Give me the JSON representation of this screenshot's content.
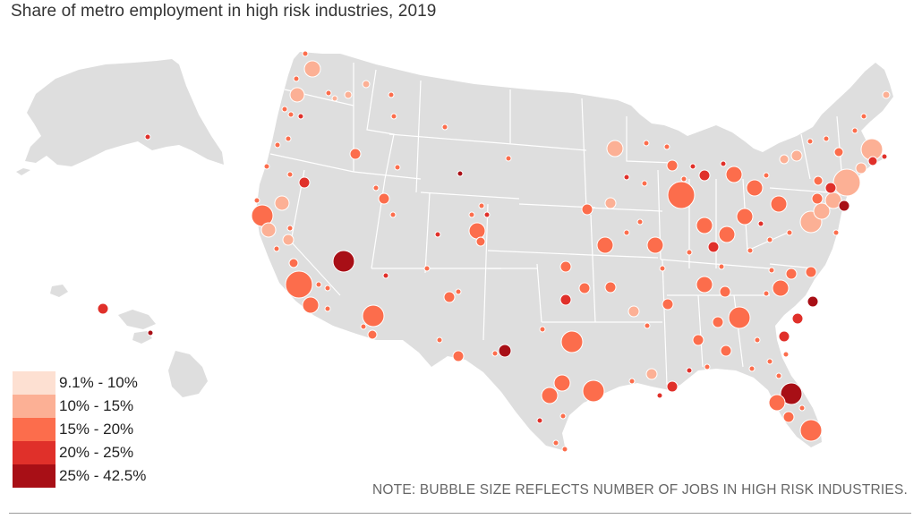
{
  "title": "Share of metro employment in high risk industries, 2019",
  "note": "NOTE: BUBBLE SIZE REFLECTS NUMBER OF JOBS IN HIGH RISK INDUSTRIES.",
  "colors": {
    "land": "#dedede",
    "state_border": "#ffffff",
    "bubble_stroke": "#ffffff"
  },
  "legend": [
    {
      "label": "9.1% - 10%",
      "color": "#fde0d2"
    },
    {
      "label": "10% - 15%",
      "color": "#fcb095"
    },
    {
      "label": "15% - 20%",
      "color": "#fc6d4c"
    },
    {
      "label": "20% - 25%",
      "color": "#e0302a"
    },
    {
      "label": "25% - 42.5%",
      "color": "#a80f16"
    }
  ]
}
